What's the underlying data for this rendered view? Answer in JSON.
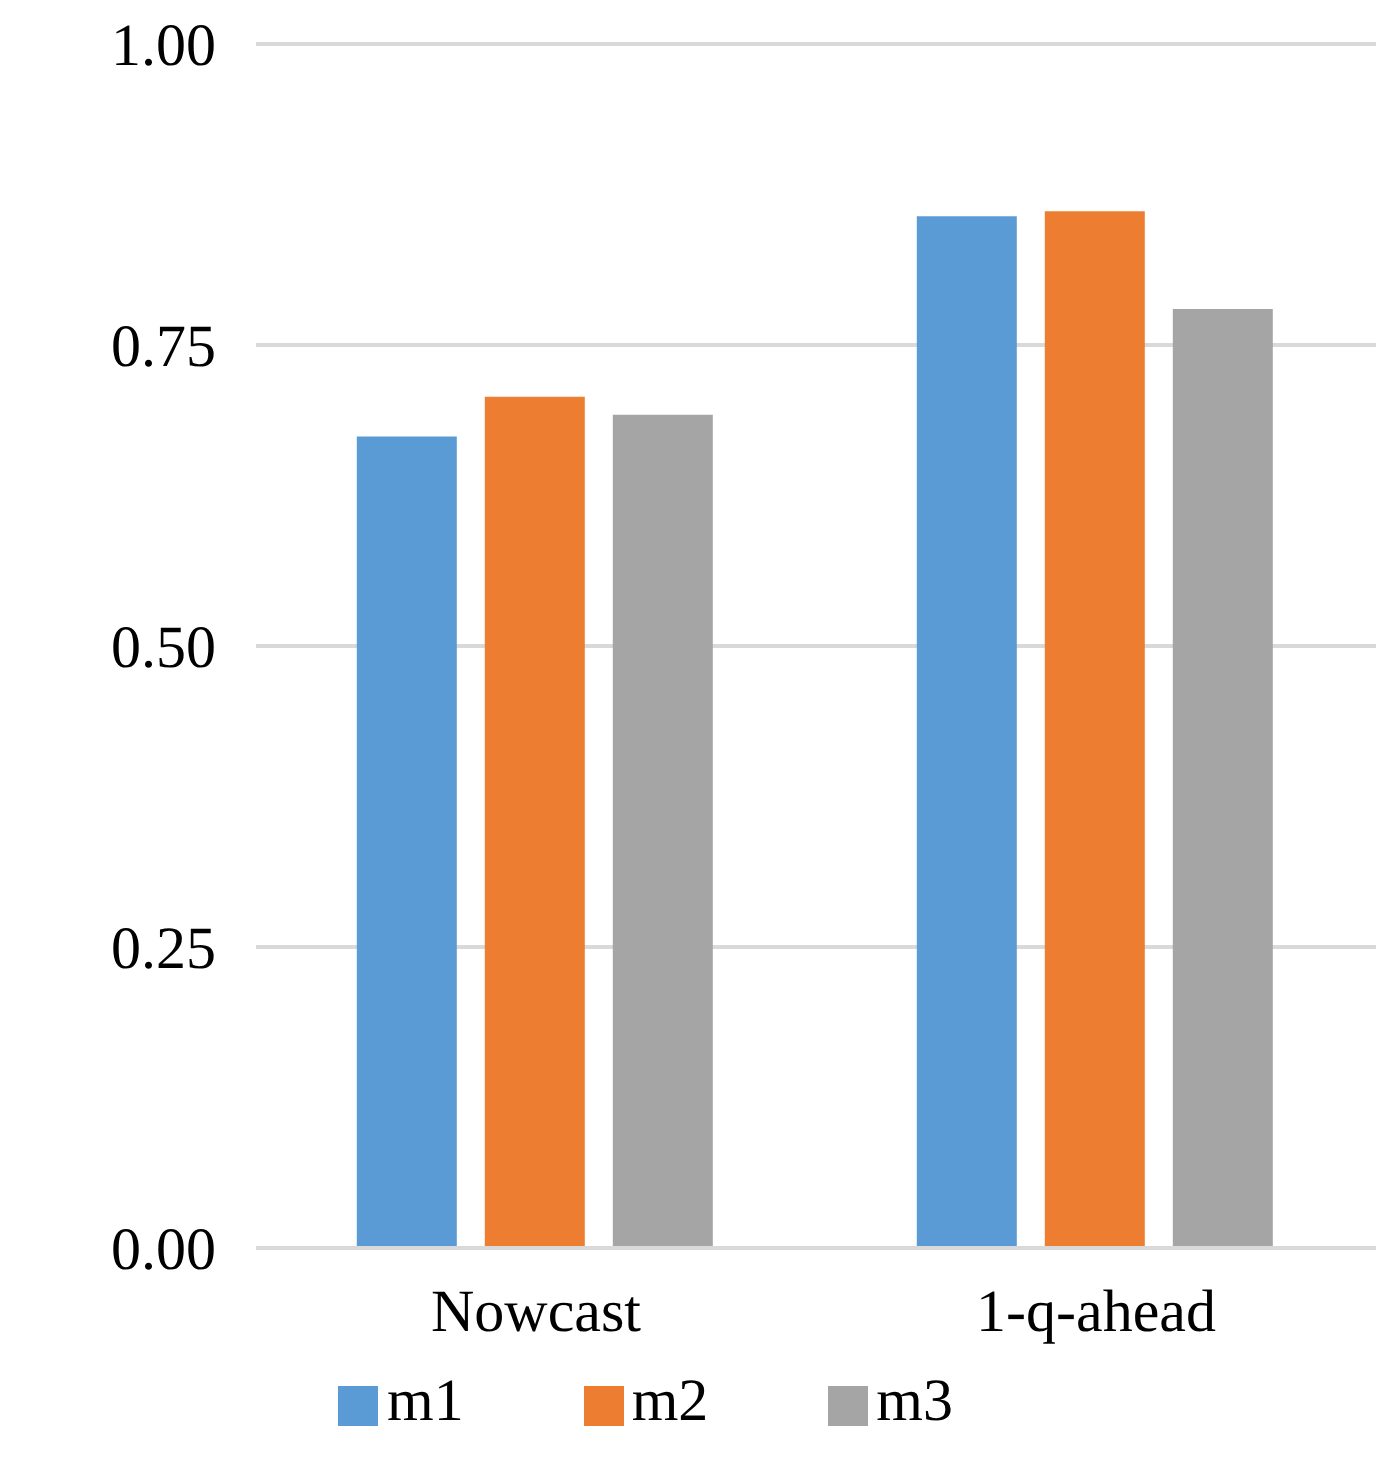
{
  "chart_data": {
    "type": "bar",
    "categories": [
      "Nowcast",
      "1-q-ahead"
    ],
    "series": [
      {
        "name": "m1",
        "color": "#5b9bd5",
        "values": [
          0.674,
          0.857
        ]
      },
      {
        "name": "m2",
        "color": "#ed7d31",
        "values": [
          0.707,
          0.861
        ]
      },
      {
        "name": "m3",
        "color": "#a5a5a5",
        "values": [
          0.692,
          0.78
        ]
      }
    ],
    "ylim": [
      0,
      1
    ],
    "yticks": [
      {
        "value": 0,
        "label": "0.00"
      },
      {
        "value": 0.25,
        "label": "0.25"
      },
      {
        "value": 0.5,
        "label": "0.50"
      },
      {
        "value": 0.75,
        "label": "0.75"
      },
      {
        "value": 1,
        "label": "1.00"
      }
    ],
    "grid": "y",
    "legend": "bottom"
  }
}
